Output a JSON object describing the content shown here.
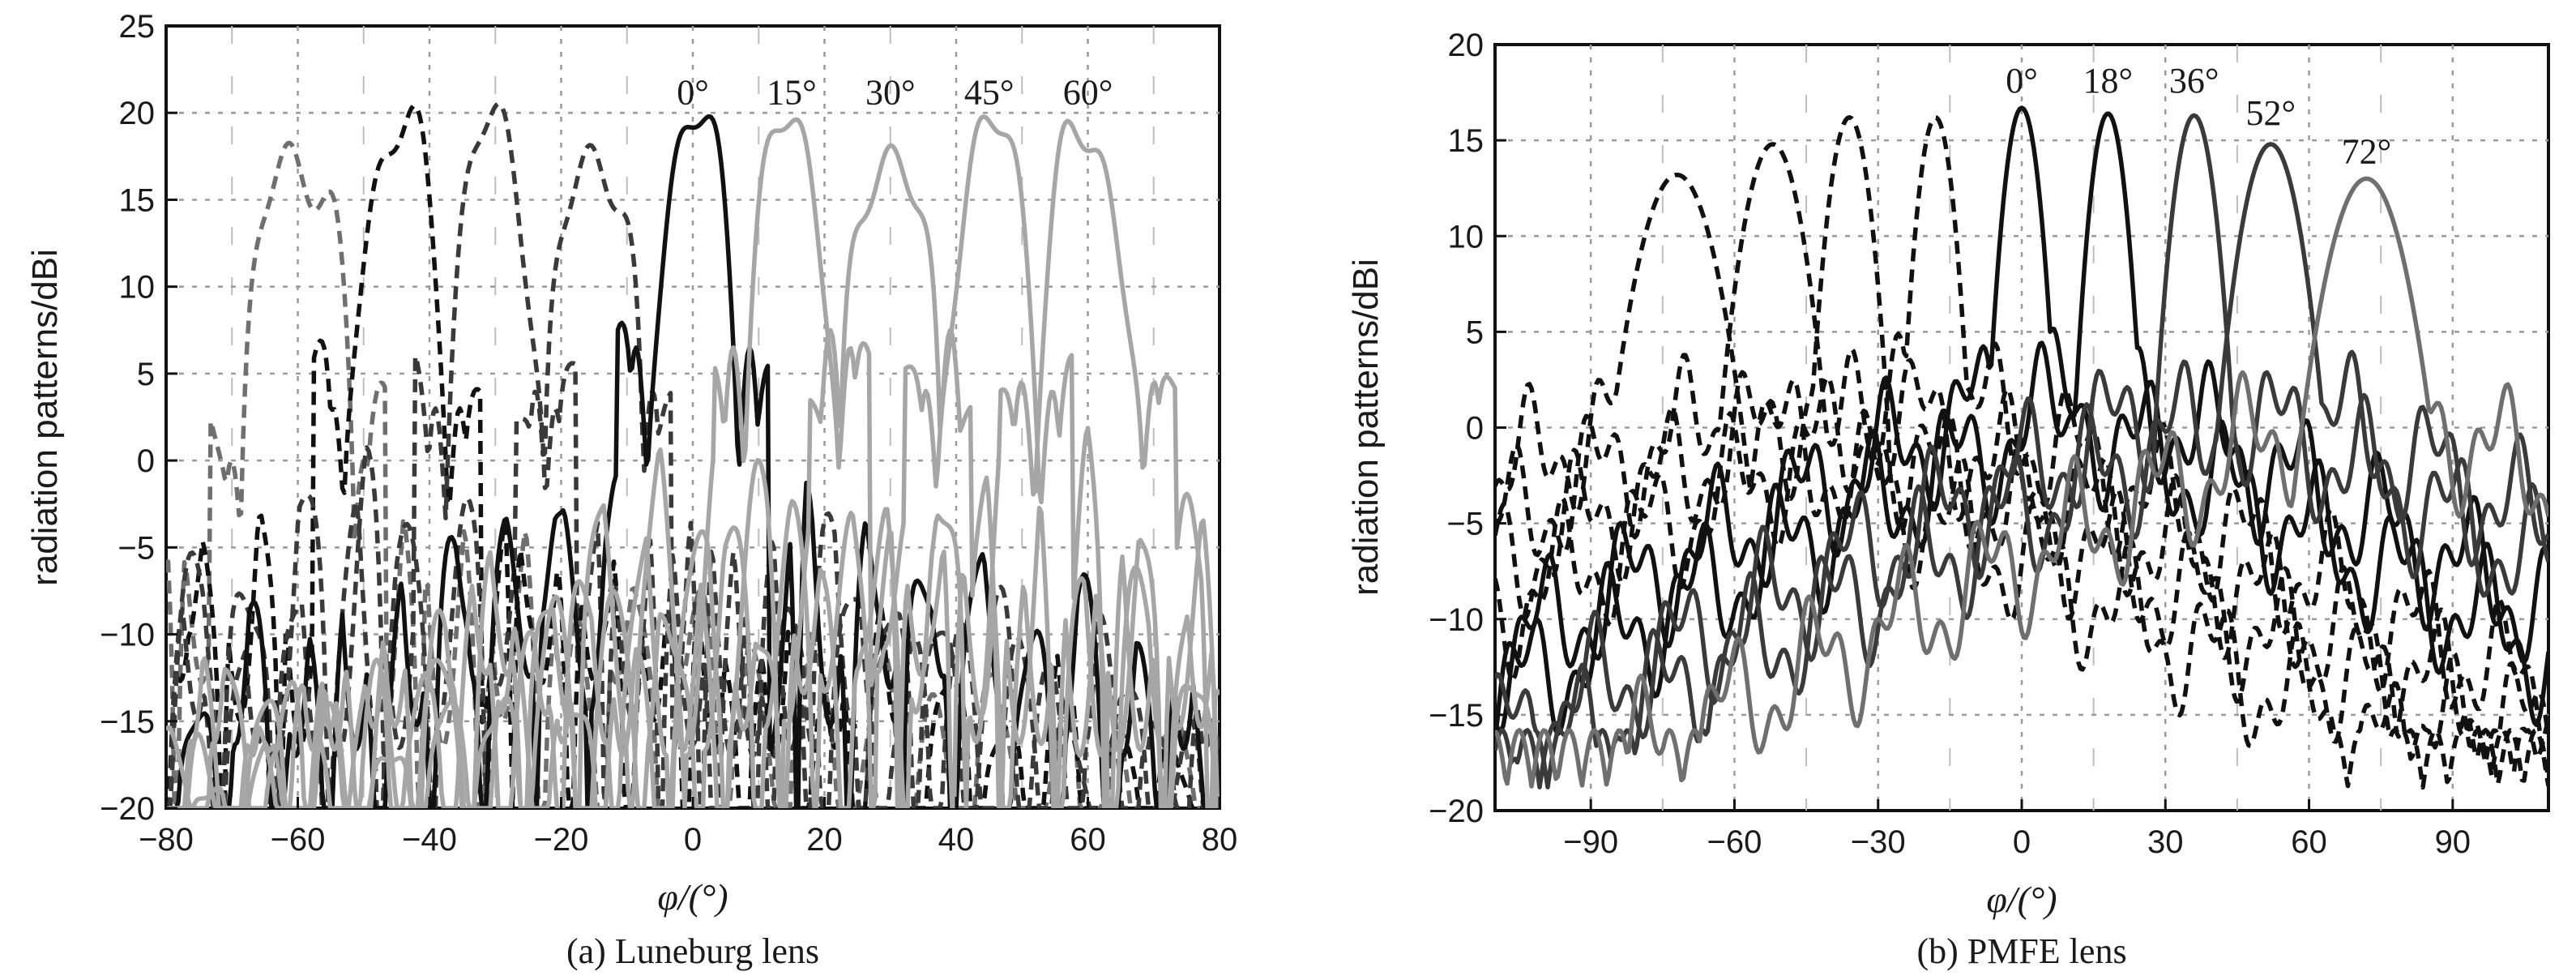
{
  "colors": {
    "black": "#111111",
    "dark": "#3a3a3a",
    "mid": "#6f6f6f",
    "light": "#a6a6a6",
    "grid": "#9a9a9a"
  },
  "chart_data": [
    {
      "type": "line",
      "caption": "(a) Luneburg lens",
      "xlabel": "φ/(°)",
      "ylabel": "radiation patterns/dBi",
      "xlim": [
        -80,
        80
      ],
      "ylim": [
        -20,
        25
      ],
      "xticks": [
        "−80",
        "−60",
        "−40",
        "−20",
        "0",
        "20",
        "40",
        "60",
        "80"
      ],
      "yticks": [
        "−20",
        "−15",
        "−10",
        "−5",
        "0",
        "5",
        "10",
        "15",
        "20",
        "25"
      ],
      "grid": true,
      "beam_labels": [
        {
          "text": "0°",
          "x": 0,
          "y": 20.5
        },
        {
          "text": "15°",
          "x": 15,
          "y": 20.5
        },
        {
          "text": "30°",
          "x": 30,
          "y": 20.5
        },
        {
          "text": "45°",
          "x": 45,
          "y": 20.5
        },
        {
          "text": "60°",
          "x": 60,
          "y": 20.5
        }
      ],
      "series": [
        {
          "center": -60,
          "peak": 18.5,
          "hw": 4.2,
          "style": "dashed",
          "color": "mid",
          "sidelobe": 0
        },
        {
          "center": -45,
          "peak": 18.8,
          "hw": 4.0,
          "style": "dashed",
          "color": "black",
          "sidelobe": 3
        },
        {
          "center": -30,
          "peak": 18.8,
          "hw": 3.8,
          "style": "dashed",
          "color": "dark",
          "sidelobe": 3
        },
        {
          "center": -15,
          "peak": 18.8,
          "hw": 3.7,
          "style": "dashed",
          "color": "dark",
          "sidelobe": 4
        },
        {
          "center": 0,
          "peak": 19.2,
          "hw": 3.6,
          "style": "solid",
          "color": "black",
          "sidelobe": 6.5
        },
        {
          "center": 15,
          "peak": 19.0,
          "hw": 3.7,
          "style": "solid",
          "color": "light",
          "sidelobe": 6.5
        },
        {
          "center": 30,
          "peak": 18.8,
          "hw": 3.8,
          "style": "solid",
          "color": "light",
          "sidelobe": 7.5
        },
        {
          "center": 45,
          "peak": 18.6,
          "hw": 4.0,
          "style": "solid",
          "color": "light",
          "sidelobe": 4
        },
        {
          "center": 60,
          "peak": 18.4,
          "hw": 4.2,
          "style": "solid",
          "color": "light",
          "sidelobe": 4.5
        }
      ]
    },
    {
      "type": "line",
      "caption": "(b) PMFE lens",
      "xlabel": "φ/(°)",
      "ylabel": "radiation patterns/dBi",
      "xlim": [
        -110,
        110
      ],
      "ylim": [
        -20,
        20
      ],
      "xticks": [
        "−90",
        "−60",
        "−30",
        "0",
        "30",
        "60",
        "90"
      ],
      "xtick_values": [
        -90,
        -60,
        -30,
        0,
        30,
        60,
        90
      ],
      "yticks": [
        "−20",
        "−15",
        "−10",
        "−5",
        "0",
        "5",
        "10",
        "15",
        "20"
      ],
      "grid": true,
      "beam_labels": [
        {
          "text": "0°",
          "x": 0,
          "y": 17.5
        },
        {
          "text": "18°",
          "x": 18,
          "y": 17.5
        },
        {
          "text": "36°",
          "x": 36,
          "y": 17.5
        },
        {
          "text": "52°",
          "x": 52,
          "y": 15.8
        },
        {
          "text": "72°",
          "x": 72,
          "y": 13.8
        }
      ],
      "series": [
        {
          "center": -72,
          "peak": 13.2,
          "hw": 13,
          "style": "dashed",
          "color": "black"
        },
        {
          "center": -52,
          "peak": 14.8,
          "hw": 10,
          "style": "dashed",
          "color": "black"
        },
        {
          "center": -36,
          "peak": 16.2,
          "hw": 7,
          "style": "dashed",
          "color": "black"
        },
        {
          "center": -18,
          "peak": 16.2,
          "hw": 6,
          "style": "dashed",
          "color": "black"
        },
        {
          "center": 0,
          "peak": 16.7,
          "hw": 6,
          "style": "solid",
          "color": "black"
        },
        {
          "center": 18,
          "peak": 16.4,
          "hw": 6,
          "style": "solid",
          "color": "black"
        },
        {
          "center": 36,
          "peak": 16.3,
          "hw": 7,
          "style": "solid",
          "color": "dark"
        },
        {
          "center": 52,
          "peak": 14.8,
          "hw": 10,
          "style": "solid",
          "color": "dark"
        },
        {
          "center": 72,
          "peak": 13.0,
          "hw": 13,
          "style": "solid",
          "color": "mid"
        }
      ]
    }
  ]
}
